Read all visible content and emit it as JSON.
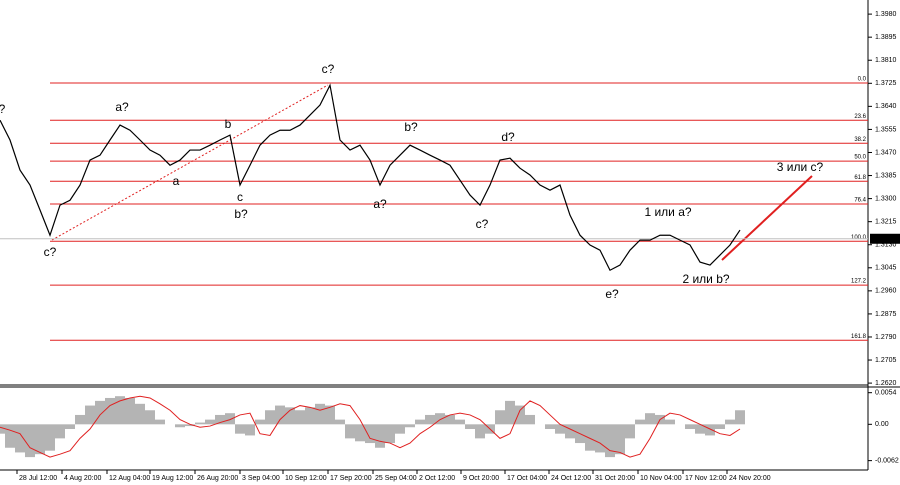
{
  "chart_data": [
    {
      "type": "line",
      "color": "#000000",
      "values": [
        1.3589,
        1.3516,
        1.3405,
        1.335,
        1.3258,
        1.3165,
        1.3276,
        1.3294,
        1.335,
        1.3442,
        1.346,
        1.3516,
        1.3571,
        1.3552,
        1.3516,
        1.3479,
        1.346,
        1.3423,
        1.3442,
        1.3479,
        1.3479,
        1.3497,
        1.3516,
        1.3534,
        1.335,
        1.3423,
        1.3497,
        1.3534,
        1.3552,
        1.3552,
        1.3571,
        1.3608,
        1.3645,
        1.3718,
        1.3516,
        1.3479,
        1.3497,
        1.3442,
        1.335,
        1.3423,
        1.346,
        1.3497,
        1.3479,
        1.346,
        1.3442,
        1.3423,
        1.3368,
        1.3313,
        1.3276,
        1.335,
        1.3442,
        1.3449,
        1.3412,
        1.3387,
        1.335,
        1.3331,
        1.335,
        1.3239,
        1.3165,
        1.3129,
        1.311,
        1.3036,
        1.3055,
        1.311,
        1.3147,
        1.3147,
        1.3165,
        1.3165,
        1.3147,
        1.3129,
        1.3066,
        1.3055,
        1.3092,
        1.3129,
        1.3184
      ],
      "xlim": [
        0,
        86.8
      ],
      "ylim": [
        1.2613,
        1.4032
      ],
      "yticks": [
        {
          "value": 1.398,
          "label": "1.3980"
        },
        {
          "value": 1.3895,
          "label": "1.3895"
        },
        {
          "value": 1.381,
          "label": "1.3810"
        },
        {
          "value": 1.3725,
          "label": "1.3725"
        },
        {
          "value": 1.364,
          "label": "1.3640"
        },
        {
          "value": 1.3555,
          "label": "1.3555"
        },
        {
          "value": 1.347,
          "label": "1.3470"
        },
        {
          "value": 1.3385,
          "label": "1.3385"
        },
        {
          "value": 1.33,
          "label": "1.3300"
        },
        {
          "value": 1.3215,
          "label": "1.3215"
        },
        {
          "value": 1.313,
          "label": "1.3130"
        },
        {
          "value": 1.3045,
          "label": "1.3045"
        },
        {
          "value": 1.296,
          "label": "1.2960"
        },
        {
          "value": 1.2875,
          "label": "1.2875"
        },
        {
          "value": 1.279,
          "label": "1.2790"
        },
        {
          "value": 1.2705,
          "label": "1.2705"
        },
        {
          "value": 1.262,
          "label": "1.2620"
        }
      ],
      "xticks": [
        {
          "value": 1.7,
          "label": "28 Jul 12:00"
        },
        {
          "value": 6.2,
          "label": "4 Aug 20:00"
        },
        {
          "value": 10.7,
          "label": "12 Aug 04:00"
        },
        {
          "value": 15.0,
          "label": "19 Aug 12:00"
        },
        {
          "value": 19.5,
          "label": "26 Aug 20:00"
        },
        {
          "value": 24.0,
          "label": "3 Sep 04:00"
        },
        {
          "value": 28.3,
          "label": "10 Sep 12:00"
        },
        {
          "value": 32.8,
          "label": "17 Sep 20:00"
        },
        {
          "value": 37.3,
          "label": "25 Sep 04:00"
        },
        {
          "value": 41.7,
          "label": "2 Oct 12:00"
        },
        {
          "value": 46.1,
          "label": "9 Oct 20:00"
        },
        {
          "value": 50.5,
          "label": "17 Oct 04:00"
        },
        {
          "value": 54.9,
          "label": "24 Oct 12:00"
        },
        {
          "value": 59.3,
          "label": "31 Oct 20:00"
        },
        {
          "value": 63.8,
          "label": "10 Nov 04:00"
        },
        {
          "value": 68.3,
          "label": "17 Nov 12:00"
        },
        {
          "value": 72.7,
          "label": "24 Nov 20:00"
        }
      ],
      "current_price": 1.3152,
      "level_color": "#e02020",
      "levels": [
        {
          "label": "0.0",
          "price": 1.3726
        },
        {
          "label": "23.6",
          "price": 1.3589
        },
        {
          "label": "38.2",
          "price": 1.3504
        },
        {
          "label": "50.0",
          "price": 1.3438
        },
        {
          "label": "61.8",
          "price": 1.3364
        },
        {
          "label": "76.4",
          "price": 1.328
        },
        {
          "label": "100.0",
          "price": 1.3143
        },
        {
          "label": "127.2",
          "price": 1.2981
        },
        {
          "label": "161.8",
          "price": 1.2778
        }
      ],
      "annotations": [
        {
          "text": "?",
          "color": "#e02020"
        },
        {
          "text": "c?",
          "color": "#e02020"
        },
        {
          "text": "a?",
          "color": "#e02020"
        },
        {
          "text": "a",
          "color": "#2020c0"
        },
        {
          "text": "b",
          "color": "#2020c0"
        },
        {
          "text": "c",
          "color": "#2020c0"
        },
        {
          "text": "b?",
          "color": "#e02020"
        },
        {
          "text": "c?",
          "color": "#e02020"
        },
        {
          "text": "b?",
          "color": "#e02020"
        },
        {
          "text": "a?",
          "color": "#e02020"
        },
        {
          "text": "d?",
          "color": "#e02020"
        },
        {
          "text": "c?",
          "color": "#e02020"
        },
        {
          "text": "e?",
          "color": "#e02020"
        },
        {
          "text": "1 или a?",
          "color": "#e02020"
        },
        {
          "text": "2 или b?",
          "color": "#e02020"
        },
        {
          "text": "3 или c?",
          "color": "#e02020"
        }
      ]
    },
    {
      "type": "bar",
      "color": "#b4b4b4",
      "values": [
        -0.0016,
        -0.004,
        -0.0048,
        -0.0056,
        -0.0051,
        -0.0045,
        -0.0024,
        -0.0008,
        0.0016,
        0.0032,
        0.004,
        0.0045,
        0.0048,
        0.0045,
        0.0035,
        0.0024,
        0.0008,
        0,
        -0.0005,
        -0.0003,
        0.0003,
        0.0008,
        0.0016,
        0.0019,
        -0.0016,
        -0.0019,
        0.0008,
        0.0024,
        0.0032,
        0.0029,
        0.0024,
        0.0029,
        0.0035,
        0.0032,
        0.0008,
        -0.0024,
        -0.0029,
        -0.0032,
        -0.004,
        -0.0032,
        -0.0016,
        -0.0005,
        0.0008,
        0.0016,
        0.0019,
        0.0016,
        0.0008,
        -0.0008,
        -0.0024,
        -0.0016,
        0.0024,
        0.004,
        0.0032,
        0.0016,
        0,
        -0.0008,
        -0.0016,
        -0.0024,
        -0.0032,
        -0.0045,
        -0.0048,
        -0.0056,
        -0.0051,
        -0.0024,
        0.0008,
        0.0019,
        0.0016,
        0.0008,
        0,
        -0.0008,
        -0.0016,
        -0.0019,
        -0.0008,
        0.0008,
        0.0024
      ],
      "signal": {
        "color": "#e02020",
        "values": [
          -0.0005,
          -0.001,
          -0.0016,
          -0.004,
          -0.0048,
          -0.0056,
          -0.0051,
          -0.0045,
          -0.0024,
          -0.0008,
          0.0016,
          0.0032,
          0.004,
          0.0045,
          0.0048,
          0.0045,
          0.0035,
          0.0024,
          0.0008,
          0,
          -0.0005,
          -0.0003,
          0.0003,
          0.0008,
          0.0016,
          0.0019,
          -0.0016,
          -0.0019,
          0.0008,
          0.0024,
          0.0032,
          0.0029,
          0.0024,
          0.0029,
          0.0035,
          0.0032,
          0.0008,
          -0.0024,
          -0.0029,
          -0.0032,
          -0.004,
          -0.0032,
          -0.0016,
          -0.0005,
          0.0008,
          0.0016,
          0.0019,
          0.0016,
          0.0008,
          -0.0008,
          -0.0024,
          -0.0016,
          0.0024,
          0.004,
          0.0032,
          0.0016,
          0,
          -0.0008,
          -0.0016,
          -0.0024,
          -0.0032,
          -0.0045,
          -0.0048,
          -0.0056,
          -0.0051,
          -0.0024,
          0.0008,
          0.0019,
          0.0016,
          0.0008,
          0,
          -0.0008,
          -0.0016,
          -0.0019,
          -0.0008
        ]
      },
      "ylim": [
        -0.0078,
        0.0062
      ],
      "yticks": [
        0.0054,
        {
          "value": 0,
          "label": "0.00"
        },
        -0.0062
      ]
    }
  ]
}
